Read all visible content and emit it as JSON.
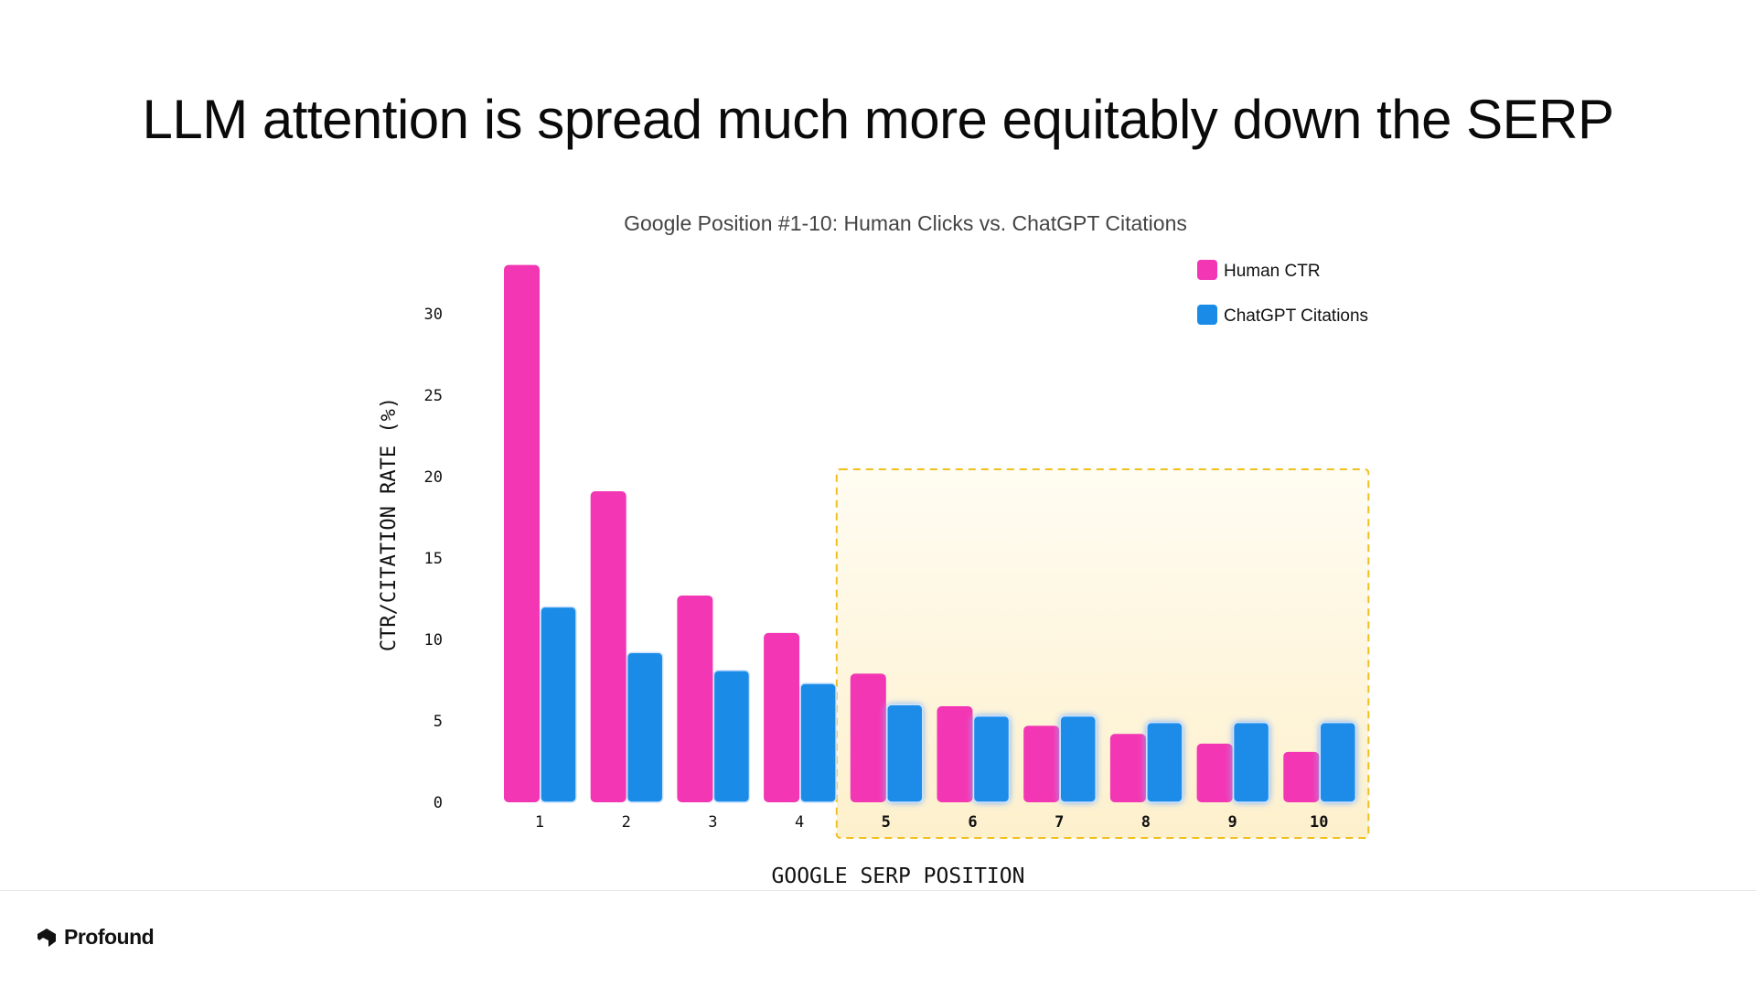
{
  "page": {
    "title": "LLM attention is spread much more equitably down the SERP"
  },
  "brand": {
    "name": "Profound",
    "icon": "profound-logo-icon"
  },
  "chart_data": {
    "type": "bar",
    "title": "Google Position #1-10: Human Clicks vs. ChatGPT Citations",
    "xlabel": "GOOGLE SERP POSITION",
    "ylabel": "CTR/CITATION RATE (%)",
    "categories": [
      "1",
      "2",
      "3",
      "4",
      "5",
      "6",
      "7",
      "8",
      "9",
      "10"
    ],
    "series": [
      {
        "name": "Human CTR",
        "color": "#f236b4",
        "values": [
          33.0,
          19.1,
          12.7,
          10.4,
          7.9,
          5.9,
          4.7,
          4.2,
          3.6,
          3.1
        ]
      },
      {
        "name": "ChatGPT Citations",
        "color": "#1a8ce8",
        "values": [
          12.0,
          9.2,
          8.1,
          7.3,
          6.0,
          5.3,
          5.3,
          4.9,
          4.9,
          4.9
        ]
      }
    ],
    "yticks": [
      0,
      5,
      10,
      15,
      20,
      25,
      30
    ],
    "ylim": [
      0,
      33
    ],
    "grid": false,
    "legend": "top-right",
    "highlight": {
      "from_category": "5",
      "to_category": "10",
      "fill": "#fdf3d6",
      "border": "#f0c020"
    }
  }
}
